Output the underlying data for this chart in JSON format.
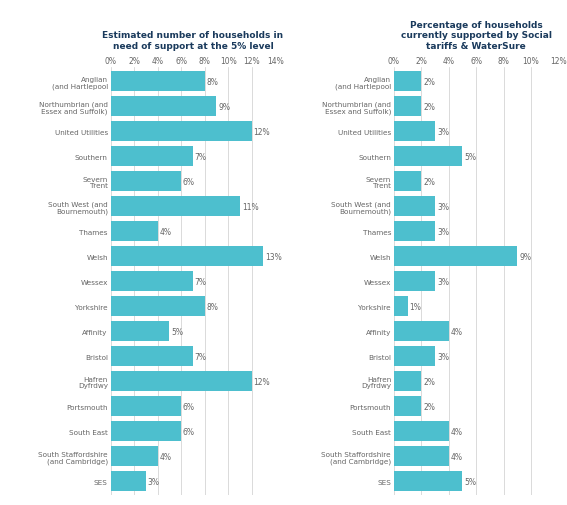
{
  "categories": [
    "Anglian\n(and Hartlepool",
    "Northumbrian (and\nEssex and Suffolk)",
    "United Utilities",
    "Southern",
    "Severn\nTrent",
    "South West (and\nBournemouth)",
    "Thames",
    "Welsh",
    "Wessex",
    "Yorkshire",
    "Affinity",
    "Bristol",
    "Hafren\nDyfrdwy",
    "Portsmouth",
    "South East",
    "South Staffordshire\n(and Cambridge)",
    "SES"
  ],
  "left_values": [
    8,
    9,
    12,
    7,
    6,
    11,
    4,
    13,
    7,
    8,
    5,
    7,
    12,
    6,
    6,
    4,
    3
  ],
  "right_values": [
    2,
    2,
    3,
    5,
    2,
    3,
    3,
    9,
    3,
    1,
    4,
    3,
    2,
    2,
    4,
    4,
    5
  ],
  "left_title": "Estimated number of households in\nneed of support at the 5% level",
  "right_title": "Percentage of households\ncurrently supported by Social\ntariffs & WaterSure",
  "bar_color": "#4DBFCE",
  "left_xlim": [
    0,
    14
  ],
  "right_xlim": [
    0,
    12
  ],
  "left_xticks": [
    0,
    2,
    4,
    6,
    8,
    10,
    12,
    14
  ],
  "right_xticks": [
    0,
    2,
    4,
    6,
    8,
    10,
    12
  ],
  "left_xtick_labels": [
    "0%",
    "2%",
    "4%",
    "6%",
    "8%",
    "10%",
    "12%",
    "14%"
  ],
  "right_xtick_labels": [
    "0%",
    "2%",
    "4%",
    "6%",
    "8%",
    "10%",
    "12%"
  ],
  "background_color": "#ffffff",
  "title_color": "#1a3a5c",
  "label_color": "#666666",
  "value_label_color": "#666666",
  "grid_color": "#cccccc",
  "bar_height": 0.82
}
